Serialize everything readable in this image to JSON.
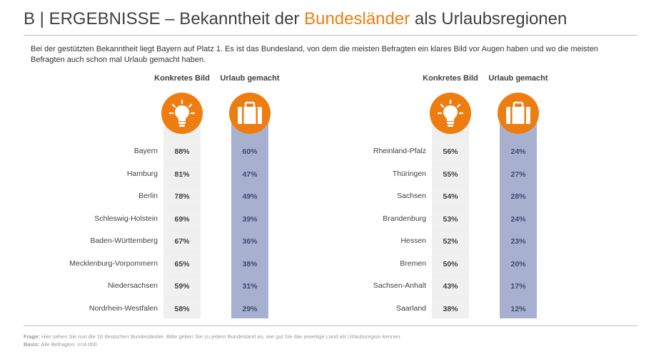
{
  "header": {
    "title_prefix": "B | ERGEBNISSE – Bekanntheit der ",
    "title_accent": "Bundesländer",
    "title_suffix": " als Urlaubsregionen",
    "intro": "Bei der gestützten Bekanntheit liegt Bayern auf Platz 1. Es ist das Bundesland, von dem die meisten Befragten ein klares Bild vor Augen haben und wo die meisten Befragten auch schon mal Urlaub gemacht haben."
  },
  "columns": {
    "konkretes_bild": "Konkretes Bild",
    "urlaub_gemacht": "Urlaub gemacht",
    "icon_bild": "lightbulb-icon",
    "icon_urlaub": "suitcase-icon"
  },
  "colors": {
    "accent": "#ee7d11",
    "grey_cell": "#f0f0f0",
    "blue_cell": "#a8b0d0"
  },
  "chart_data": {
    "type": "table",
    "series": [
      {
        "name": "Konkretes Bild"
      },
      {
        "name": "Urlaub gemacht"
      }
    ],
    "left": [
      {
        "state": "Bayern",
        "bild": "88%",
        "urlaub": "60%"
      },
      {
        "state": "Hamburg",
        "bild": "81%",
        "urlaub": "47%"
      },
      {
        "state": "Berlin",
        "bild": "78%",
        "urlaub": "49%"
      },
      {
        "state": "Schleswig-Holstein",
        "bild": "69%",
        "urlaub": "39%"
      },
      {
        "state": "Baden-Württemberg",
        "bild": "67%",
        "urlaub": "36%"
      },
      {
        "state": "Mecklenburg-Vorpommern",
        "bild": "65%",
        "urlaub": "38%"
      },
      {
        "state": "Niedersachsen",
        "bild": "59%",
        "urlaub": "31%"
      },
      {
        "state": "Nordrhein-Westfalen",
        "bild": "58%",
        "urlaub": "29%"
      }
    ],
    "right": [
      {
        "state": "Rheinland-Pfalz",
        "bild": "56%",
        "urlaub": "24%"
      },
      {
        "state": "Thüringen",
        "bild": "55%",
        "urlaub": "27%"
      },
      {
        "state": "Sachsen",
        "bild": "54%",
        "urlaub": "28%"
      },
      {
        "state": "Brandenburg",
        "bild": "53%",
        "urlaub": "24%"
      },
      {
        "state": "Hessen",
        "bild": "52%",
        "urlaub": "23%"
      },
      {
        "state": "Bremen",
        "bild": "50%",
        "urlaub": "20%"
      },
      {
        "state": "Sachsen-Anhalt",
        "bild": "43%",
        "urlaub": "17%"
      },
      {
        "state": "Saarland",
        "bild": "38%",
        "urlaub": "12%"
      }
    ]
  },
  "footer": {
    "frage_label": "Frage:",
    "frage_text": " Hier sehen Sie nun die 16 deutschen Bundesländer. Bitte geben Sie zu jedem Bundesland an, wie gut Sie das jeweilige Land als Urlaubsregion kennen.",
    "basis_label": "Basis:",
    "basis_text": " Alle Befragten, n=4.000"
  }
}
